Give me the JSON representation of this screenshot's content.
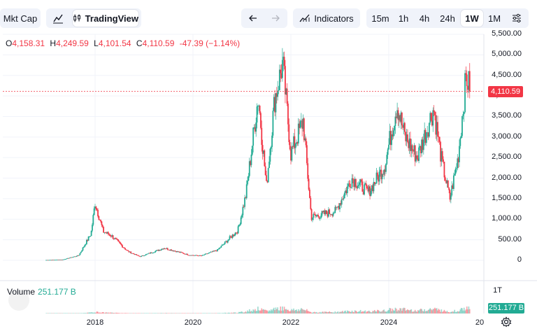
{
  "toolbar": {
    "mktcap_label": "Mkt Cap",
    "tradingview_label": "TradingView",
    "indicators_label": "Indicators",
    "timeframes": [
      "15m",
      "1h",
      "4h",
      "24h",
      "1W",
      "1M"
    ],
    "active_timeframe": "1W"
  },
  "ohlc": {
    "o_label": "O",
    "o_value": "4,158.31",
    "h_label": "H",
    "h_value": "4,249.59",
    "l_label": "L",
    "l_value": "4,101.54",
    "c_label": "C",
    "c_value": "4,110.59",
    "change": "-47.39 (−1.14%)"
  },
  "price_tag": "4,110.59",
  "volume": {
    "label": "Volume",
    "value": "251.177 B",
    "tag": "251.177 B",
    "axis_label": "1T"
  },
  "colors": {
    "up": "#22ab94",
    "down": "#f23645",
    "grid": "#f0f3fa"
  },
  "chart_data": {
    "type": "candlestick",
    "title": "",
    "y_ticks": [
      "5,500.00",
      "5,000.00",
      "4,500.00",
      "4,000.00",
      "3,500.00",
      "3,000.00",
      "2,500.00",
      "2,000.00",
      "1,500.00",
      "1,000.00",
      "500.00",
      "0"
    ],
    "x_ticks": [
      "2018",
      "2020",
      "2022",
      "2024",
      "20"
    ],
    "ylim": [
      0,
      5500
    ],
    "last_close": 4110.59,
    "close_path": [
      {
        "x": "2017-01",
        "y": 8
      },
      {
        "x": "2017-05",
        "y": 15
      },
      {
        "x": "2017-09",
        "y": 120
      },
      {
        "x": "2017-12",
        "y": 650
      },
      {
        "x": "2018-01",
        "y": 1400
      },
      {
        "x": "2018-03",
        "y": 700
      },
      {
        "x": "2018-05",
        "y": 600
      },
      {
        "x": "2018-09",
        "y": 220
      },
      {
        "x": "2018-12",
        "y": 90
      },
      {
        "x": "2019-06",
        "y": 300
      },
      {
        "x": "2019-12",
        "y": 130
      },
      {
        "x": "2020-03",
        "y": 110
      },
      {
        "x": "2020-07",
        "y": 250
      },
      {
        "x": "2020-12",
        "y": 730
      },
      {
        "x": "2021-02",
        "y": 1600
      },
      {
        "x": "2021-05",
        "y": 4000
      },
      {
        "x": "2021-07",
        "y": 1800
      },
      {
        "x": "2021-09",
        "y": 3900
      },
      {
        "x": "2021-11",
        "y": 4800
      },
      {
        "x": "2022-01",
        "y": 2600
      },
      {
        "x": "2022-04",
        "y": 3400
      },
      {
        "x": "2022-06",
        "y": 1050
      },
      {
        "x": "2022-12",
        "y": 1200
      },
      {
        "x": "2023-04",
        "y": 2000
      },
      {
        "x": "2023-08",
        "y": 1650
      },
      {
        "x": "2023-12",
        "y": 2300
      },
      {
        "x": "2024-03",
        "y": 3800
      },
      {
        "x": "2024-05",
        "y": 3000
      },
      {
        "x": "2024-08",
        "y": 2500
      },
      {
        "x": "2024-12",
        "y": 3700
      },
      {
        "x": "2025-02",
        "y": 2400
      },
      {
        "x": "2025-04",
        "y": 1500
      },
      {
        "x": "2025-06",
        "y": 2500
      },
      {
        "x": "2025-08",
        "y": 4500
      },
      {
        "x": "2025-09",
        "y": 4110.59
      }
    ]
  }
}
